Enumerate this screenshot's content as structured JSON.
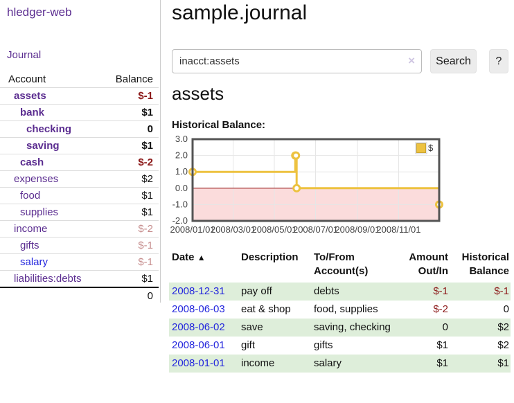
{
  "brand": "hledger-web",
  "nav": {
    "journal": "Journal"
  },
  "sidebar": {
    "header": {
      "account": "Account",
      "balance": "Balance"
    },
    "accounts": [
      {
        "name": "assets",
        "indent": 1,
        "bold": true,
        "balance": "$-1",
        "neg": true,
        "faded": false,
        "unvisited": false
      },
      {
        "name": "bank",
        "indent": 2,
        "bold": true,
        "balance": "$1",
        "neg": false,
        "faded": false,
        "unvisited": false
      },
      {
        "name": "checking",
        "indent": 3,
        "bold": true,
        "balance": "0",
        "neg": false,
        "faded": false,
        "unvisited": false
      },
      {
        "name": "saving",
        "indent": 3,
        "bold": true,
        "balance": "$1",
        "neg": false,
        "faded": false,
        "unvisited": false
      },
      {
        "name": "cash",
        "indent": 2,
        "bold": true,
        "balance": "$-2",
        "neg": true,
        "faded": false,
        "unvisited": false
      },
      {
        "name": "expenses",
        "indent": 1,
        "bold": false,
        "balance": "$2",
        "neg": false,
        "faded": false,
        "unvisited": false
      },
      {
        "name": "food",
        "indent": 2,
        "bold": false,
        "balance": "$1",
        "neg": false,
        "faded": false,
        "unvisited": false
      },
      {
        "name": "supplies",
        "indent": 2,
        "bold": false,
        "balance": "$1",
        "neg": false,
        "faded": false,
        "unvisited": false
      },
      {
        "name": "income",
        "indent": 1,
        "bold": false,
        "balance": "$-2",
        "neg": true,
        "faded": true,
        "unvisited": false
      },
      {
        "name": "gifts",
        "indent": 2,
        "bold": false,
        "balance": "$-1",
        "neg": true,
        "faded": true,
        "unvisited": false
      },
      {
        "name": "salary",
        "indent": 2,
        "bold": false,
        "balance": "$-1",
        "neg": true,
        "faded": true,
        "unvisited": true
      },
      {
        "name": "liabilities:debts",
        "indent": 1,
        "bold": false,
        "balance": "$1",
        "neg": false,
        "faded": false,
        "unvisited": false
      }
    ],
    "total": "0"
  },
  "main": {
    "title": "sample.journal",
    "search": {
      "value": "inacct:assets",
      "clear_icon": "×",
      "button": "Search",
      "help": "?"
    },
    "account_heading": "assets",
    "chart_label": "Historical Balance:"
  },
  "chart_data": {
    "type": "line",
    "title": "Historical Balance:",
    "step": true,
    "series": [
      {
        "name": "$",
        "color": "#EDC240",
        "points": [
          {
            "date": "2008-01-01",
            "day": 0,
            "value": 1
          },
          {
            "date": "2008-06-01",
            "day": 152,
            "value": 2
          },
          {
            "date": "2008-06-02",
            "day": 153,
            "value": 2
          },
          {
            "date": "2008-06-03",
            "day": 154,
            "value": 0
          },
          {
            "date": "2008-12-31",
            "day": 365,
            "value": -1
          }
        ]
      }
    ],
    "x_ticks": [
      {
        "label": "2008/01/01",
        "day": 0
      },
      {
        "label": "2008/03/01",
        "day": 60
      },
      {
        "label": "2008/05/01",
        "day": 121
      },
      {
        "label": "2008/07/01",
        "day": 182
      },
      {
        "label": "2008/09/01",
        "day": 244
      },
      {
        "label": "2008/11/01",
        "day": 305
      }
    ],
    "x_range_days": [
      0,
      365
    ],
    "y_ticks": [
      "3.0",
      "2.0",
      "1.0",
      "0.0",
      "-1.0",
      "-2.0"
    ],
    "ylim": [
      -2,
      3
    ],
    "grid": true,
    "negative_region_color": "#fbdcdc",
    "zero_line_color": "#8b0000",
    "grid_color": "#e6e6e6",
    "border_color": "#545454",
    "legend": {
      "label": "$",
      "position": "top-right"
    }
  },
  "table": {
    "headers": {
      "date": "Date",
      "sort_icon": "▲",
      "description": "Description",
      "accounts": "To/From Account(s)",
      "amount": "Amount Out/In",
      "balance": "Historical Balance"
    },
    "rows": [
      {
        "date": "2008-12-31",
        "description": "pay off",
        "accounts": "debts",
        "amount": "$-1",
        "amount_neg": true,
        "balance": "$-1",
        "balance_neg": true,
        "green": true
      },
      {
        "date": "2008-06-03",
        "description": "eat & shop",
        "accounts": "food, supplies",
        "amount": "$-2",
        "amount_neg": true,
        "balance": "0",
        "balance_neg": false,
        "green": false
      },
      {
        "date": "2008-06-02",
        "description": "save",
        "accounts": "saving, checking",
        "amount": "0",
        "amount_neg": false,
        "balance": "$2",
        "balance_neg": false,
        "green": true
      },
      {
        "date": "2008-06-01",
        "description": "gift",
        "accounts": "gifts",
        "amount": "$1",
        "amount_neg": false,
        "balance": "$2",
        "balance_neg": false,
        "green": false
      },
      {
        "date": "2008-01-01",
        "description": "income",
        "accounts": "salary",
        "amount": "$1",
        "amount_neg": false,
        "balance": "$1",
        "balance_neg": false,
        "green": true
      }
    ]
  }
}
